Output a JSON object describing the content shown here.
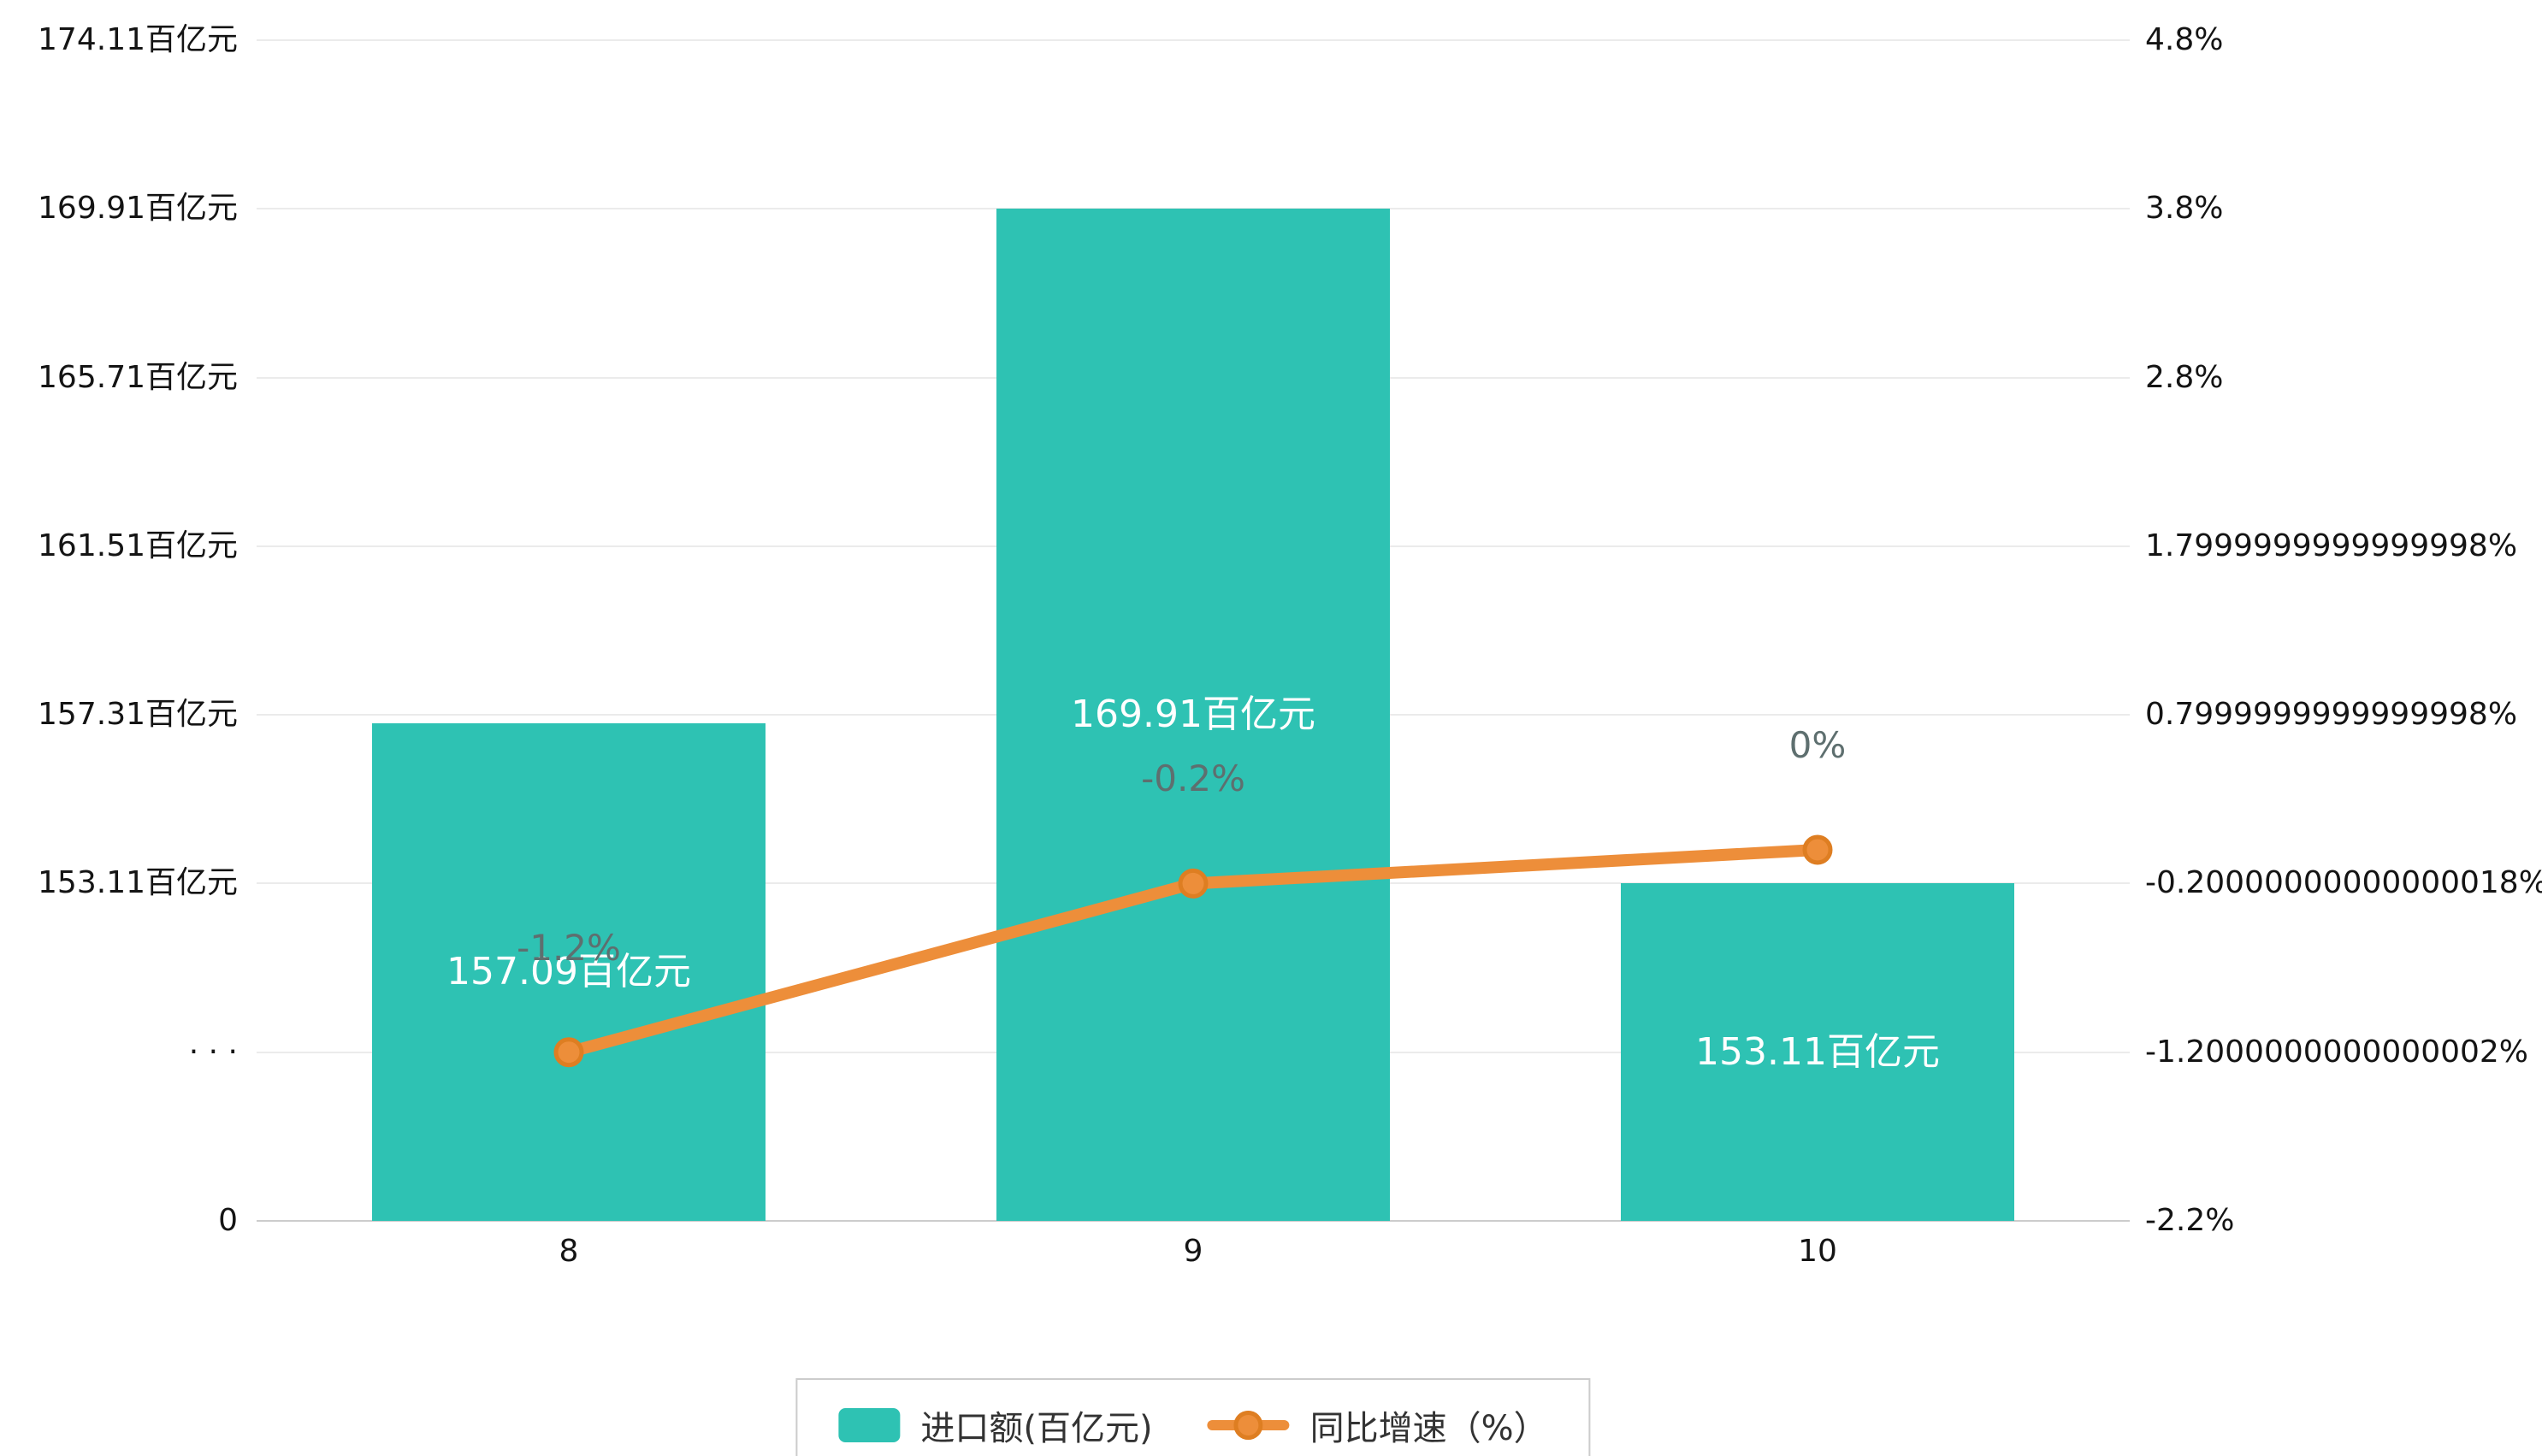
{
  "colors": {
    "bar": "#2EC2B3",
    "line": "#ED8E3A",
    "line_dark": "#DE7E22",
    "bar_label_text": "#FFFFFF",
    "pct_label_text": "#5E6F6F",
    "axis_text": "#141414",
    "gridline": "#EBEBEB",
    "axis_line": "#CCCCCC",
    "legend_border": "#CCCCCC",
    "background": "#FFFFFF"
  },
  "chart_data": {
    "type": "bar",
    "subtype": "bar-with-line-overlay",
    "title": "",
    "categories": [
      "8",
      "9",
      "10"
    ],
    "series": [
      {
        "name": "进口额(百亿元)",
        "type": "bar",
        "values": [
          157.09,
          169.91,
          153.11
        ],
        "labels": [
          "157.09百亿元",
          "169.91百亿元",
          "153.11百亿元"
        ],
        "axis": "left"
      },
      {
        "name": "同比增速（%）",
        "type": "line",
        "values": [
          -1.2,
          -0.2,
          0
        ],
        "labels": [
          "-1.2%",
          "-0.2%",
          "0%"
        ],
        "axis": "right"
      }
    ],
    "left_axis": {
      "max": 174.11,
      "interval": 4.2,
      "broken_axis": true,
      "ticks": [
        "174.11百亿元",
        "169.91百亿元",
        "165.71百亿元",
        "161.51百亿元",
        "157.31百亿元",
        "153.11百亿元",
        "· · ·",
        "0"
      ]
    },
    "right_axis": {
      "max": 4.8,
      "interval": 1.0,
      "ticks": [
        "4.8%",
        "3.8%",
        "2.8%",
        "1.7999999999999998%",
        "0.7999999999999998%",
        "-0.20000000000000018%",
        "-1.2000000000000002%",
        "-2.2%"
      ]
    },
    "legend": [
      "进口额(百亿元)",
      "同比增速（%）"
    ],
    "legend_position": "bottom",
    "grid": true
  }
}
